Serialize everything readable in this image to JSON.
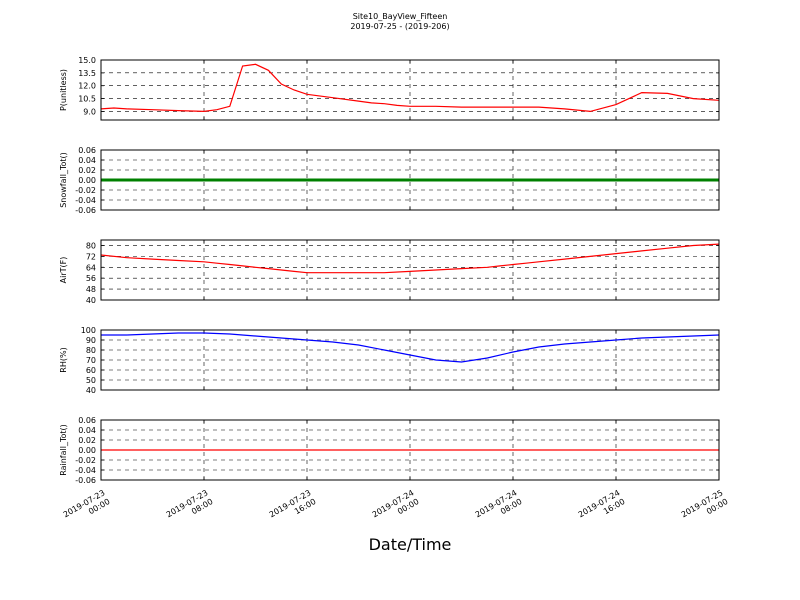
{
  "chart_data": {
    "type": "line",
    "title": "Site10_BayView_Fifteen",
    "subtitle": "2019-07-25 - (2019-206)",
    "xlabel": "Date/Time",
    "x_range": [
      "2019-07-23 00:00",
      "2019-07-25 00:00"
    ],
    "x_tick_labels": [
      [
        "2019-07-23",
        "00:00"
      ],
      [
        "2019-07-23",
        "08:00"
      ],
      [
        "2019-07-23",
        "16:00"
      ],
      [
        "2019-07-24",
        "00:00"
      ],
      [
        "2019-07-24",
        "08:00"
      ],
      [
        "2019-07-24",
        "16:00"
      ],
      [
        "2019-07-25",
        "00:00"
      ]
    ],
    "grid": true,
    "panels": [
      {
        "ylabel": "P(unitless)",
        "ylim": [
          8.0,
          15.0
        ],
        "yticks": [
          "9.0",
          "10.5",
          "12.0",
          "13.5",
          "15.0"
        ],
        "color": "#ff0000",
        "x_hours": [
          0,
          1,
          2,
          4,
          6,
          8,
          9,
          10,
          11,
          12,
          13,
          14,
          15,
          16,
          18,
          20,
          21,
          22,
          23,
          24,
          26,
          28,
          30,
          32,
          34,
          36,
          38,
          40,
          42,
          44,
          46,
          48
        ],
        "values": [
          9.3,
          9.4,
          9.3,
          9.2,
          9.1,
          9.0,
          9.2,
          9.6,
          14.3,
          14.5,
          13.8,
          12.2,
          11.5,
          11.0,
          10.6,
          10.2,
          10.0,
          9.9,
          9.7,
          9.6,
          9.6,
          9.5,
          9.5,
          9.5,
          9.5,
          9.3,
          9.0,
          9.8,
          11.2,
          11.1,
          10.5,
          10.3
        ]
      },
      {
        "ylabel": "Snowfall_Tot()",
        "ylim": [
          -0.06,
          0.06
        ],
        "yticks": [
          "-0.06",
          "-0.04",
          "-0.02",
          "0.00",
          "0.02",
          "0.04",
          "0.06"
        ],
        "color": "#008000",
        "x_hours": [
          0,
          48
        ],
        "values": [
          0.0,
          0.0
        ]
      },
      {
        "ylabel": "AirT(F)",
        "ylim": [
          40,
          84
        ],
        "yticks": [
          "40",
          "48",
          "56",
          "64",
          "72",
          "80"
        ],
        "color": "#ff0000",
        "x_hours": [
          0,
          2,
          4,
          6,
          8,
          9,
          10,
          11,
          12,
          13,
          14,
          15,
          16,
          18,
          20,
          22,
          24,
          26,
          28,
          30,
          31,
          32,
          33,
          34,
          36,
          38,
          40,
          42,
          44,
          46,
          48
        ],
        "values": [
          73.0,
          71.0,
          70.0,
          69.0,
          68.0,
          67.0,
          66.0,
          65.0,
          64.0,
          63.0,
          62.0,
          61.0,
          60.0,
          60.0,
          60.0,
          60.0,
          61.0,
          62.0,
          63.0,
          64.0,
          65.0,
          66.0,
          67.0,
          68.0,
          70.0,
          72.0,
          74.0,
          76.0,
          78.0,
          80.0,
          81.0
        ]
      },
      {
        "ylabel": "RH(%)",
        "ylim": [
          40,
          100
        ],
        "yticks": [
          "40",
          "50",
          "60",
          "70",
          "80",
          "90",
          "100"
        ],
        "color": "#0000ff",
        "x_hours": [
          0,
          2,
          4,
          6,
          8,
          10,
          12,
          14,
          16,
          18,
          20,
          22,
          24,
          26,
          28,
          30,
          32,
          34,
          36,
          38,
          40,
          42,
          44,
          46,
          48
        ],
        "values": [
          95,
          95,
          96,
          97,
          97,
          96,
          94,
          92,
          90,
          88,
          85,
          80,
          75,
          70,
          68,
          72,
          78,
          83,
          86,
          88,
          90,
          92,
          93,
          94,
          95
        ]
      },
      {
        "ylabel": "Rainfall_Tot()",
        "ylim": [
          -0.06,
          0.06
        ],
        "yticks": [
          "-0.06",
          "-0.04",
          "-0.02",
          "0.00",
          "0.02",
          "0.04",
          "0.06"
        ],
        "color": "#ff0000",
        "x_hours": [
          0,
          48
        ],
        "values": [
          0.0,
          0.0
        ]
      }
    ]
  }
}
